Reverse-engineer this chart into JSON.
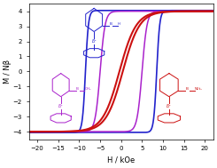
{
  "xlabel": "H / kOe",
  "ylabel": "M / Nβ",
  "xlim": [
    -22,
    22
  ],
  "ylim": [
    -4.5,
    4.5
  ],
  "yticks": [
    -4,
    -3,
    -2,
    -1,
    0,
    1,
    2,
    3,
    4
  ],
  "xticks": [
    -20,
    -15,
    -10,
    -5,
    0,
    5,
    10,
    15,
    20
  ],
  "color_BH": "#2222cc",
  "color_BCH3": "#aa22cc",
  "color_BNEt2": "#cc1111",
  "BH_sat": 4.05,
  "BH_Hc": 8.5,
  "BH_sharp": 1.4,
  "BCH3_sat": 4.0,
  "BCH3_Hc": 5.0,
  "BCH3_sharp": 0.85,
  "BNEt2_sat": 4.0,
  "BNEt2_Hc": 0.4,
  "BNEt2_sharp": 0.25,
  "BH_lw": 1.2,
  "BCH3_lw": 1.1,
  "BNEt2_lw": 1.5
}
